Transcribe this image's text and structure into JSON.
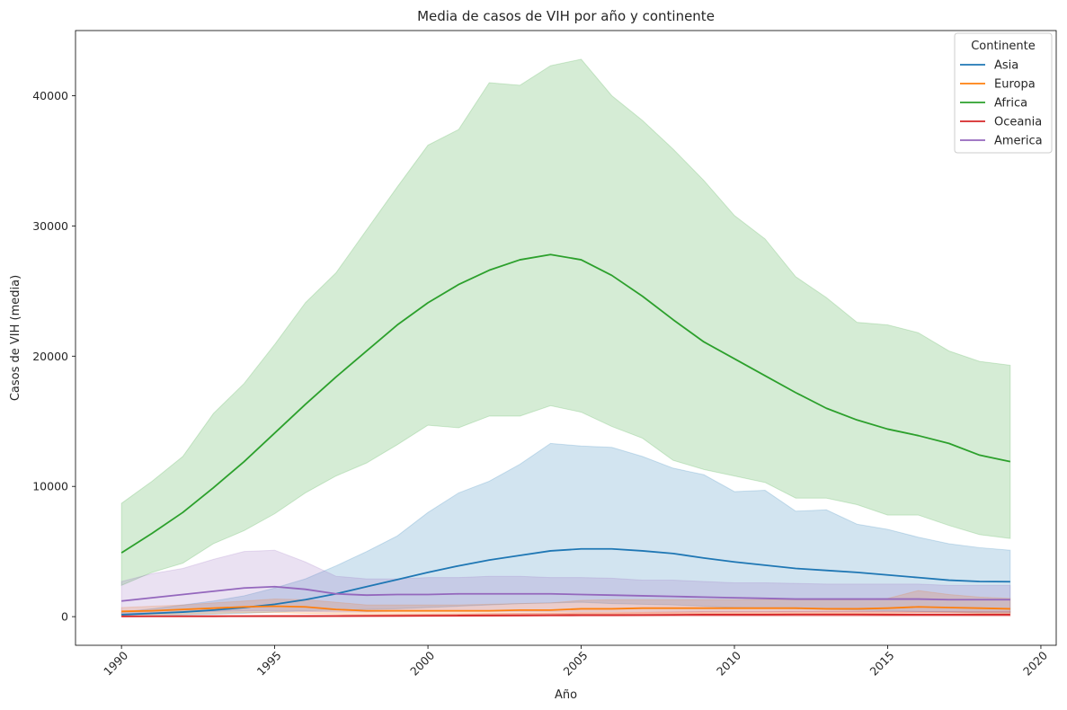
{
  "chart_data": {
    "type": "line",
    "title": "Media de casos de VIH por año y continente",
    "xlabel": "Año",
    "ylabel": "Casos de VIH (media)",
    "xlim": [
      1988.5,
      2020.5
    ],
    "ylim": [
      -2200,
      45000
    ],
    "xticks": [
      "1990",
      "1995",
      "2000",
      "2005",
      "2010",
      "2015",
      "2020"
    ],
    "xtick_values": [
      1990,
      1995,
      2000,
      2005,
      2010,
      2015,
      2020
    ],
    "yticks": [
      "0",
      "10000",
      "20000",
      "30000",
      "40000"
    ],
    "ytick_values": [
      0,
      10000,
      20000,
      30000,
      40000
    ],
    "grid": false,
    "legend": {
      "title": "Continente",
      "placement": "top-right"
    },
    "x": [
      1990,
      1991,
      1992,
      1993,
      1994,
      1995,
      1996,
      1997,
      1998,
      1999,
      2000,
      2001,
      2002,
      2003,
      2004,
      2005,
      2006,
      2007,
      2008,
      2009,
      2010,
      2011,
      2012,
      2013,
      2014,
      2015,
      2016,
      2017,
      2018,
      2019
    ],
    "series": [
      {
        "name": "Asia",
        "color": "#1f77b4",
        "values": [
          150,
          250,
          350,
          500,
          700,
          950,
          1300,
          1750,
          2300,
          2850,
          3400,
          3900,
          4350,
          4700,
          5050,
          5200,
          5200,
          5050,
          4850,
          4500,
          4200,
          3950,
          3700,
          3550,
          3400,
          3200,
          3000,
          2800,
          2700,
          2680
        ],
        "lower": [
          50,
          80,
          120,
          180,
          250,
          350,
          450,
          500,
          550,
          600,
          700,
          800,
          900,
          1000,
          1050,
          1100,
          1000,
          950,
          900,
          800,
          700,
          650,
          600,
          550,
          500,
          450,
          400,
          350,
          300,
          280
        ],
        "upper": [
          350,
          600,
          900,
          1200,
          1600,
          2200,
          2900,
          3900,
          5000,
          6200,
          8000,
          9500,
          10400,
          11700,
          13300,
          13100,
          13000,
          12300,
          11400,
          10900,
          9600,
          9700,
          8100,
          8200,
          7100,
          6700,
          6100,
          5600,
          5300,
          5100
        ]
      },
      {
        "name": "Europa",
        "color": "#ff7f0e",
        "values": [
          400,
          450,
          550,
          650,
          750,
          800,
          750,
          550,
          450,
          450,
          450,
          450,
          450,
          500,
          500,
          600,
          600,
          650,
          650,
          650,
          650,
          650,
          650,
          600,
          600,
          650,
          750,
          700,
          650,
          600
        ],
        "lower": [
          150,
          150,
          200,
          250,
          300,
          300,
          250,
          200,
          150,
          150,
          150,
          150,
          150,
          150,
          150,
          200,
          200,
          250,
          250,
          250,
          250,
          250,
          250,
          250,
          250,
          250,
          300,
          300,
          250,
          250
        ],
        "upper": [
          700,
          800,
          900,
          1050,
          1200,
          1350,
          1300,
          1100,
          900,
          900,
          900,
          900,
          950,
          1000,
          1050,
          1250,
          1300,
          1300,
          1300,
          1300,
          1300,
          1300,
          1300,
          1300,
          1300,
          1400,
          2000,
          1700,
          1500,
          1400
        ]
      },
      {
        "name": "Africa",
        "color": "#2ca02c",
        "values": [
          4900,
          6400,
          8000,
          9900,
          11900,
          14100,
          16300,
          18400,
          20400,
          22400,
          24100,
          25500,
          26600,
          27400,
          27800,
          27400,
          26200,
          24600,
          22800,
          21100,
          19800,
          18500,
          17200,
          16000,
          15100,
          14400,
          13900,
          13300,
          12400,
          11900
        ],
        "lower": [
          2400,
          3400,
          4100,
          5600,
          6600,
          7900,
          9500,
          10800,
          11800,
          13200,
          14700,
          14500,
          15400,
          15400,
          16200,
          15700,
          14600,
          13700,
          12000,
          11300,
          10800,
          10300,
          9100,
          9100,
          8600,
          7800,
          7800,
          7000,
          6300,
          6000
        ],
        "upper": [
          8700,
          10400,
          12300,
          15600,
          17900,
          20900,
          24100,
          26400,
          29700,
          33000,
          36200,
          37400,
          41000,
          40800,
          42300,
          42800,
          40000,
          38100,
          35900,
          33500,
          30800,
          29000,
          26100,
          24500,
          22600,
          22400,
          21800,
          20400,
          19600,
          19300
        ]
      },
      {
        "name": "Oceania",
        "color": "#d62728",
        "values": [
          20,
          25,
          30,
          30,
          35,
          40,
          40,
          45,
          50,
          60,
          70,
          80,
          90,
          100,
          110,
          120,
          120,
          130,
          140,
          150,
          150,
          150,
          160,
          160,
          160,
          150,
          150,
          150,
          150,
          150
        ],
        "lower": [
          0,
          0,
          0,
          0,
          0,
          0,
          0,
          0,
          0,
          0,
          10,
          10,
          10,
          15,
          15,
          20,
          20,
          20,
          25,
          25,
          25,
          25,
          25,
          25,
          25,
          25,
          25,
          25,
          25,
          25
        ],
        "upper": [
          60,
          70,
          80,
          90,
          100,
          110,
          120,
          130,
          140,
          160,
          180,
          200,
          230,
          250,
          270,
          300,
          300,
          320,
          350,
          380,
          380,
          380,
          400,
          400,
          400,
          380,
          380,
          380,
          380,
          380
        ]
      },
      {
        "name": "America",
        "color": "#9467bd",
        "values": [
          1200,
          1450,
          1700,
          1950,
          2200,
          2300,
          2100,
          1750,
          1650,
          1700,
          1700,
          1750,
          1750,
          1750,
          1750,
          1700,
          1650,
          1600,
          1550,
          1500,
          1450,
          1400,
          1350,
          1350,
          1350,
          1350,
          1350,
          1300,
          1300,
          1300
        ],
        "lower": [
          200,
          300,
          350,
          400,
          450,
          450,
          400,
          350,
          350,
          400,
          400,
          400,
          400,
          400,
          400,
          400,
          400,
          400,
          400,
          400,
          400,
          400,
          400,
          400,
          400,
          400,
          400,
          400,
          400,
          400
        ],
        "upper": [
          2700,
          3300,
          3700,
          4400,
          5000,
          5100,
          4200,
          3100,
          2900,
          2900,
          3000,
          3000,
          3100,
          3100,
          3000,
          3000,
          2950,
          2800,
          2800,
          2700,
          2600,
          2600,
          2550,
          2500,
          2500,
          2500,
          2500,
          2400,
          2400,
          2400
        ]
      }
    ]
  }
}
